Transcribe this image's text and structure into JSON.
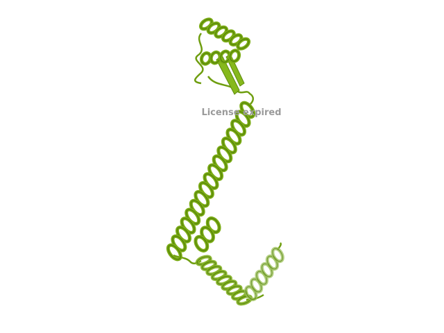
{
  "watermark": "License expired"
}
